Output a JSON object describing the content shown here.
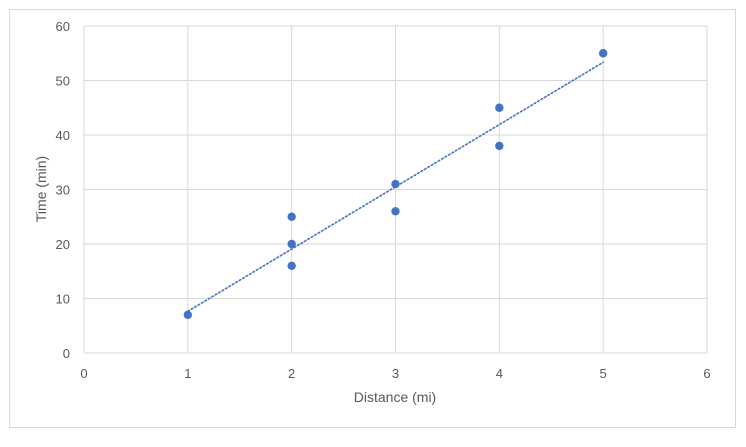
{
  "chart_data": {
    "type": "scatter",
    "xlabel": "Distance (mi)",
    "ylabel": "Time (min)",
    "xlim": [
      0,
      6
    ],
    "ylim": [
      0,
      60
    ],
    "xticks": [
      0,
      1,
      2,
      3,
      4,
      5,
      6
    ],
    "yticks": [
      0,
      10,
      20,
      30,
      40,
      50,
      60
    ],
    "grid": true,
    "points": [
      {
        "x": 1,
        "y": 7
      },
      {
        "x": 2,
        "y": 25
      },
      {
        "x": 2,
        "y": 20
      },
      {
        "x": 2,
        "y": 16
      },
      {
        "x": 3,
        "y": 31
      },
      {
        "x": 3,
        "y": 26
      },
      {
        "x": 4,
        "y": 45
      },
      {
        "x": 4,
        "y": 38
      },
      {
        "x": 5,
        "y": 55
      }
    ],
    "trendline": {
      "type": "linear",
      "style": "dotted",
      "x_range": [
        1,
        5
      ]
    },
    "colors": {
      "marker": "#4472c4",
      "trendline": "#4472c4",
      "grid": "#d9d9d9"
    }
  }
}
